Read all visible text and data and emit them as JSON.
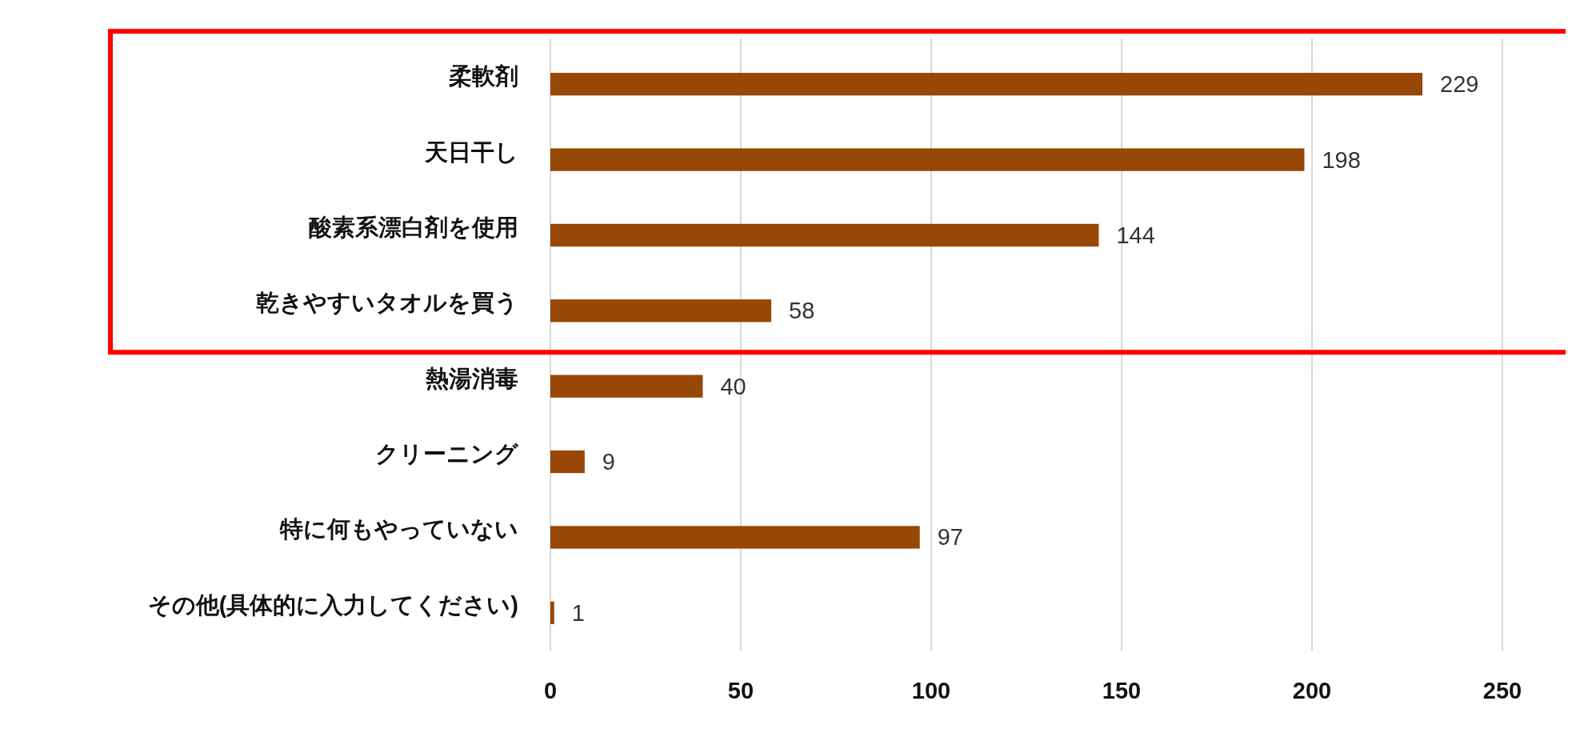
{
  "chart_data": {
    "type": "bar",
    "orientation": "horizontal",
    "categories": [
      "柔軟剤",
      "天日干し",
      "酸素系漂白剤を使用",
      "乾きやすいタオルを買う",
      "熱湯消毒",
      "クリーニング",
      "特に何もやっていない",
      "その他(具体的に入力してください)"
    ],
    "values": [
      229,
      198,
      144,
      58,
      40,
      9,
      97,
      1
    ],
    "color": "#974706",
    "xlim": [
      0,
      250
    ],
    "xticks": [
      0,
      50,
      100,
      150,
      200,
      250
    ],
    "grid": "x",
    "data_labels": true
  }
}
